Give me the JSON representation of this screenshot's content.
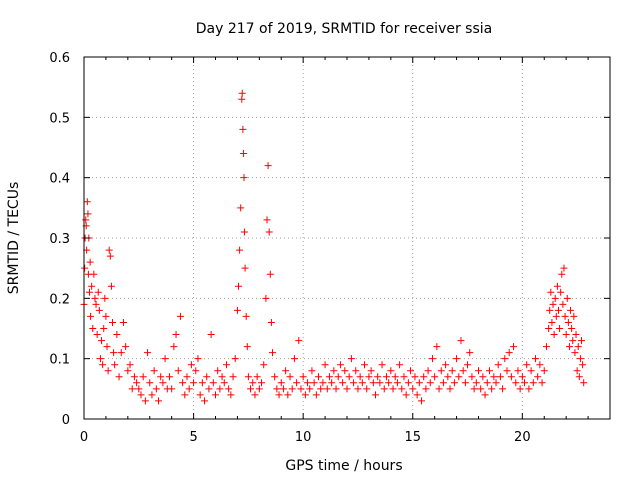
{
  "chart_data": {
    "type": "scatter",
    "title": "Day 217 of 2019, SRMTID for receiver ssia",
    "xlabel": "GPS time / hours",
    "ylabel": "SRMTID / TECUs",
    "xlim": [
      0,
      24
    ],
    "ylim": [
      0,
      0.6
    ],
    "xticks": [
      "0",
      "5",
      "10",
      "15",
      "20"
    ],
    "yticks": [
      "0",
      "0.1",
      "0.2",
      "0.3",
      "0.4",
      "0.5",
      "0.6"
    ],
    "grid": true,
    "marker": "plus",
    "color": "#ff0000",
    "series": [
      {
        "name": "SRMTID",
        "points": [
          [
            0.0,
            0.19
          ],
          [
            0.03,
            0.25
          ],
          [
            0.05,
            0.3
          ],
          [
            0.08,
            0.33
          ],
          [
            0.1,
            0.32
          ],
          [
            0.12,
            0.28
          ],
          [
            0.15,
            0.36
          ],
          [
            0.18,
            0.34
          ],
          [
            0.2,
            0.24
          ],
          [
            0.22,
            0.3
          ],
          [
            0.25,
            0.21
          ],
          [
            0.28,
            0.26
          ],
          [
            0.3,
            0.17
          ],
          [
            0.35,
            0.22
          ],
          [
            0.4,
            0.15
          ],
          [
            0.45,
            0.24
          ],
          [
            0.5,
            0.2
          ],
          [
            0.55,
            0.19
          ],
          [
            0.6,
            0.14
          ],
          [
            0.65,
            0.21
          ],
          [
            0.7,
            0.18
          ],
          [
            0.75,
            0.1
          ],
          [
            0.8,
            0.13
          ],
          [
            0.85,
            0.09
          ],
          [
            0.9,
            0.15
          ],
          [
            0.95,
            0.2
          ],
          [
            1.0,
            0.17
          ],
          [
            1.05,
            0.12
          ],
          [
            1.1,
            0.08
          ],
          [
            1.15,
            0.28
          ],
          [
            1.2,
            0.27
          ],
          [
            1.25,
            0.22
          ],
          [
            1.3,
            0.16
          ],
          [
            1.35,
            0.11
          ],
          [
            1.4,
            0.09
          ],
          [
            1.5,
            0.14
          ],
          [
            1.6,
            0.07
          ],
          [
            1.7,
            0.11
          ],
          [
            1.8,
            0.16
          ],
          [
            1.9,
            0.12
          ],
          [
            2.0,
            0.08
          ],
          [
            2.1,
            0.09
          ],
          [
            2.2,
            0.05
          ],
          [
            2.3,
            0.07
          ],
          [
            2.4,
            0.06
          ],
          [
            2.5,
            0.05
          ],
          [
            2.6,
            0.04
          ],
          [
            2.7,
            0.07
          ],
          [
            2.8,
            0.03
          ],
          [
            2.9,
            0.11
          ],
          [
            3.0,
            0.06
          ],
          [
            3.1,
            0.04
          ],
          [
            3.2,
            0.08
          ],
          [
            3.3,
            0.05
          ],
          [
            3.4,
            0.03
          ],
          [
            3.5,
            0.07
          ],
          [
            3.6,
            0.06
          ],
          [
            3.7,
            0.1
          ],
          [
            3.8,
            0.05
          ],
          [
            3.9,
            0.07
          ],
          [
            4.0,
            0.05
          ],
          [
            4.1,
            0.12
          ],
          [
            4.2,
            0.14
          ],
          [
            4.3,
            0.08
          ],
          [
            4.4,
            0.17
          ],
          [
            4.5,
            0.06
          ],
          [
            4.6,
            0.04
          ],
          [
            4.7,
            0.07
          ],
          [
            4.8,
            0.05
          ],
          [
            4.9,
            0.09
          ],
          [
            5.0,
            0.06
          ],
          [
            5.1,
            0.08
          ],
          [
            5.2,
            0.1
          ],
          [
            5.3,
            0.04
          ],
          [
            5.4,
            0.06
          ],
          [
            5.5,
            0.03
          ],
          [
            5.6,
            0.07
          ],
          [
            5.7,
            0.05
          ],
          [
            5.8,
            0.14
          ],
          [
            5.9,
            0.06
          ],
          [
            6.0,
            0.04
          ],
          [
            6.1,
            0.08
          ],
          [
            6.2,
            0.05
          ],
          [
            6.3,
            0.07
          ],
          [
            6.4,
            0.06
          ],
          [
            6.5,
            0.09
          ],
          [
            6.6,
            0.05
          ],
          [
            6.7,
            0.04
          ],
          [
            6.8,
            0.07
          ],
          [
            6.9,
            0.1
          ],
          [
            7.0,
            0.18
          ],
          [
            7.05,
            0.22
          ],
          [
            7.1,
            0.28
          ],
          [
            7.15,
            0.35
          ],
          [
            7.2,
            0.53
          ],
          [
            7.22,
            0.54
          ],
          [
            7.25,
            0.48
          ],
          [
            7.28,
            0.44
          ],
          [
            7.3,
            0.4
          ],
          [
            7.32,
            0.31
          ],
          [
            7.35,
            0.25
          ],
          [
            7.4,
            0.17
          ],
          [
            7.45,
            0.12
          ],
          [
            7.5,
            0.07
          ],
          [
            7.6,
            0.05
          ],
          [
            7.7,
            0.06
          ],
          [
            7.8,
            0.04
          ],
          [
            7.9,
            0.07
          ],
          [
            8.0,
            0.05
          ],
          [
            8.1,
            0.06
          ],
          [
            8.2,
            0.09
          ],
          [
            8.3,
            0.2
          ],
          [
            8.35,
            0.33
          ],
          [
            8.4,
            0.42
          ],
          [
            8.45,
            0.31
          ],
          [
            8.5,
            0.24
          ],
          [
            8.55,
            0.16
          ],
          [
            8.6,
            0.11
          ],
          [
            8.7,
            0.07
          ],
          [
            8.8,
            0.05
          ],
          [
            8.9,
            0.04
          ],
          [
            9.0,
            0.06
          ],
          [
            9.1,
            0.05
          ],
          [
            9.2,
            0.08
          ],
          [
            9.3,
            0.04
          ],
          [
            9.4,
            0.07
          ],
          [
            9.5,
            0.05
          ],
          [
            9.6,
            0.1
          ],
          [
            9.7,
            0.06
          ],
          [
            9.8,
            0.13
          ],
          [
            9.9,
            0.05
          ],
          [
            10.0,
            0.07
          ],
          [
            10.1,
            0.04
          ],
          [
            10.2,
            0.06
          ],
          [
            10.3,
            0.05
          ],
          [
            10.4,
            0.08
          ],
          [
            10.5,
            0.06
          ],
          [
            10.6,
            0.04
          ],
          [
            10.7,
            0.07
          ],
          [
            10.8,
            0.05
          ],
          [
            10.9,
            0.06
          ],
          [
            11.0,
            0.09
          ],
          [
            11.1,
            0.05
          ],
          [
            11.2,
            0.07
          ],
          [
            11.3,
            0.06
          ],
          [
            11.4,
            0.08
          ],
          [
            11.5,
            0.05
          ],
          [
            11.6,
            0.07
          ],
          [
            11.7,
            0.09
          ],
          [
            11.8,
            0.06
          ],
          [
            11.9,
            0.08
          ],
          [
            12.0,
            0.05
          ],
          [
            12.1,
            0.07
          ],
          [
            12.2,
            0.1
          ],
          [
            12.3,
            0.06
          ],
          [
            12.4,
            0.08
          ],
          [
            12.5,
            0.05
          ],
          [
            12.6,
            0.07
          ],
          [
            12.7,
            0.06
          ],
          [
            12.8,
            0.09
          ],
          [
            12.9,
            0.05
          ],
          [
            13.0,
            0.07
          ],
          [
            13.1,
            0.08
          ],
          [
            13.2,
            0.06
          ],
          [
            13.3,
            0.04
          ],
          [
            13.4,
            0.07
          ],
          [
            13.5,
            0.06
          ],
          [
            13.6,
            0.09
          ],
          [
            13.7,
            0.05
          ],
          [
            13.8,
            0.07
          ],
          [
            13.9,
            0.06
          ],
          [
            14.0,
            0.08
          ],
          [
            14.1,
            0.05
          ],
          [
            14.2,
            0.07
          ],
          [
            14.3,
            0.06
          ],
          [
            14.4,
            0.09
          ],
          [
            14.5,
            0.05
          ],
          [
            14.6,
            0.07
          ],
          [
            14.7,
            0.04
          ],
          [
            14.8,
            0.06
          ],
          [
            14.9,
            0.08
          ],
          [
            15.0,
            0.05
          ],
          [
            15.1,
            0.07
          ],
          [
            15.2,
            0.04
          ],
          [
            15.3,
            0.06
          ],
          [
            15.4,
            0.03
          ],
          [
            15.5,
            0.07
          ],
          [
            15.6,
            0.05
          ],
          [
            15.7,
            0.08
          ],
          [
            15.8,
            0.06
          ],
          [
            15.9,
            0.1
          ],
          [
            16.0,
            0.07
          ],
          [
            16.1,
            0.12
          ],
          [
            16.2,
            0.05
          ],
          [
            16.3,
            0.08
          ],
          [
            16.4,
            0.06
          ],
          [
            16.5,
            0.09
          ],
          [
            16.6,
            0.07
          ],
          [
            16.7,
            0.05
          ],
          [
            16.8,
            0.08
          ],
          [
            16.9,
            0.06
          ],
          [
            17.0,
            0.1
          ],
          [
            17.1,
            0.07
          ],
          [
            17.2,
            0.13
          ],
          [
            17.3,
            0.08
          ],
          [
            17.4,
            0.06
          ],
          [
            17.5,
            0.09
          ],
          [
            17.6,
            0.11
          ],
          [
            17.7,
            0.07
          ],
          [
            17.8,
            0.05
          ],
          [
            17.9,
            0.06
          ],
          [
            18.0,
            0.08
          ],
          [
            18.1,
            0.05
          ],
          [
            18.2,
            0.07
          ],
          [
            18.3,
            0.04
          ],
          [
            18.4,
            0.06
          ],
          [
            18.5,
            0.08
          ],
          [
            18.6,
            0.05
          ],
          [
            18.7,
            0.07
          ],
          [
            18.8,
            0.06
          ],
          [
            18.9,
            0.09
          ],
          [
            19.0,
            0.07
          ],
          [
            19.1,
            0.05
          ],
          [
            19.2,
            0.1
          ],
          [
            19.3,
            0.08
          ],
          [
            19.4,
            0.11
          ],
          [
            19.5,
            0.07
          ],
          [
            19.6,
            0.12
          ],
          [
            19.7,
            0.06
          ],
          [
            19.8,
            0.08
          ],
          [
            19.9,
            0.05
          ],
          [
            20.0,
            0.07
          ],
          [
            20.1,
            0.06
          ],
          [
            20.2,
            0.09
          ],
          [
            20.3,
            0.05
          ],
          [
            20.4,
            0.08
          ],
          [
            20.5,
            0.06
          ],
          [
            20.6,
            0.1
          ],
          [
            20.7,
            0.07
          ],
          [
            20.8,
            0.09
          ],
          [
            20.9,
            0.06
          ],
          [
            21.0,
            0.08
          ],
          [
            21.1,
            0.12
          ],
          [
            21.2,
            0.15
          ],
          [
            21.25,
            0.18
          ],
          [
            21.3,
            0.21
          ],
          [
            21.35,
            0.16
          ],
          [
            21.4,
            0.19
          ],
          [
            21.45,
            0.14
          ],
          [
            21.5,
            0.2
          ],
          [
            21.55,
            0.17
          ],
          [
            21.6,
            0.22
          ],
          [
            21.65,
            0.18
          ],
          [
            21.7,
            0.15
          ],
          [
            21.75,
            0.21
          ],
          [
            21.8,
            0.24
          ],
          [
            21.85,
            0.19
          ],
          [
            21.9,
            0.25
          ],
          [
            21.95,
            0.17
          ],
          [
            22.0,
            0.14
          ],
          [
            22.05,
            0.2
          ],
          [
            22.1,
            0.16
          ],
          [
            22.15,
            0.12
          ],
          [
            22.2,
            0.18
          ],
          [
            22.25,
            0.15
          ],
          [
            22.3,
            0.13
          ],
          [
            22.35,
            0.17
          ],
          [
            22.4,
            0.11
          ],
          [
            22.45,
            0.14
          ],
          [
            22.5,
            0.08
          ],
          [
            22.55,
            0.12
          ],
          [
            22.6,
            0.07
          ],
          [
            22.65,
            0.1
          ],
          [
            22.7,
            0.13
          ],
          [
            22.75,
            0.09
          ],
          [
            22.8,
            0.06
          ]
        ]
      }
    ]
  }
}
